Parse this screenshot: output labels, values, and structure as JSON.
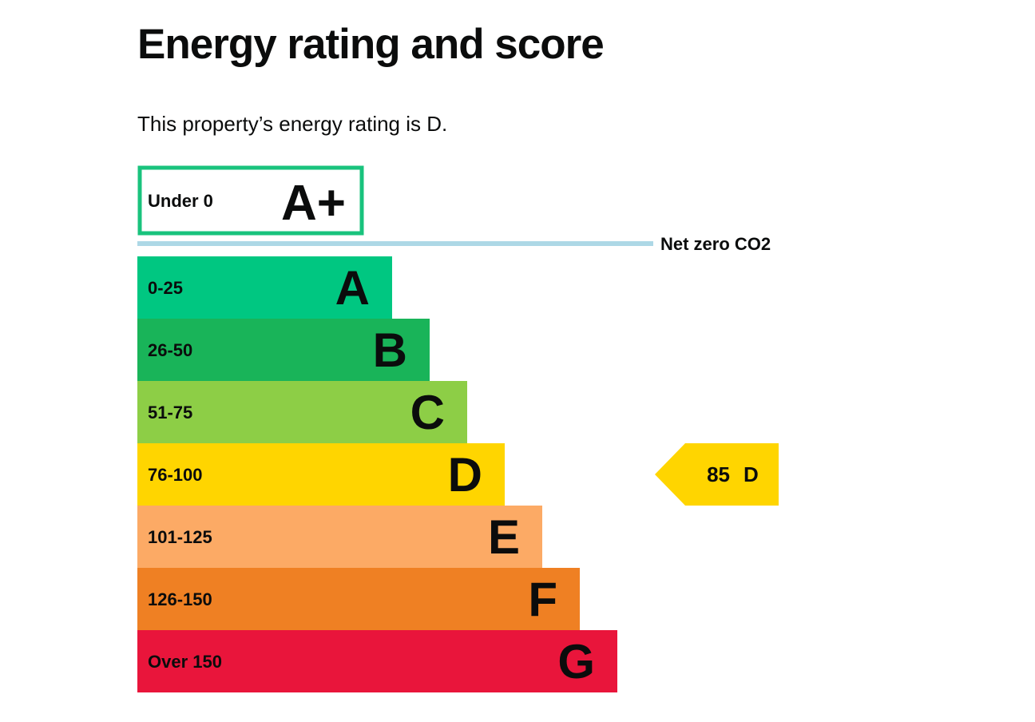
{
  "page": {
    "title": "Energy rating and score",
    "summary_prefix": "This property’s energy rating is ",
    "summary_rating": "D",
    "summary_suffix": "."
  },
  "chart_data": {
    "type": "bar",
    "title": "Energy rating and score",
    "bands": [
      {
        "label": "Under 0",
        "band": "A+",
        "color": "#ffffff",
        "outline": "#19c37d",
        "outlined": true
      },
      {
        "label": "0-25",
        "band": "A",
        "color": "#00c781"
      },
      {
        "label": "26-50",
        "band": "B",
        "color": "#19b459"
      },
      {
        "label": "51-75",
        "band": "C",
        "color": "#8dce46"
      },
      {
        "label": "76-100",
        "band": "D",
        "color": "#ffd500"
      },
      {
        "label": "101-125",
        "band": "E",
        "color": "#fcaa65"
      },
      {
        "label": "126-150",
        "band": "F",
        "color": "#ef8023"
      },
      {
        "label": "Over 150",
        "band": "G",
        "color": "#e9153b"
      }
    ],
    "net_zero": {
      "label": "Net zero CO2",
      "color": "#add8e6"
    },
    "current": {
      "score": 85,
      "band": "D",
      "band_index": 4,
      "color": "#ffd500"
    }
  }
}
